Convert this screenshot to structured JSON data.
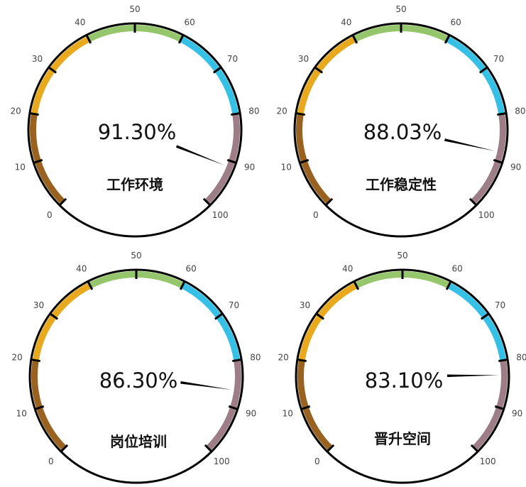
{
  "chart_data": [
    {
      "type": "gauge",
      "title": "工作环境",
      "value": 91.3,
      "value_label": "91.30%",
      "scale": {
        "min": 0,
        "max": 100,
        "tick_step": 10,
        "tick_labels": [
          "0",
          "10",
          "20",
          "30",
          "40",
          "50",
          "60",
          "70",
          "80",
          "90",
          "100"
        ]
      },
      "bands": [
        {
          "from": 0,
          "to": 20,
          "color": "#9a6220"
        },
        {
          "from": 20,
          "to": 40,
          "color": "#e9a91e"
        },
        {
          "from": 40,
          "to": 60,
          "color": "#95c66b"
        },
        {
          "from": 60,
          "to": 80,
          "color": "#36c0e6"
        },
        {
          "from": 80,
          "to": 100,
          "color": "#9d7d86"
        }
      ]
    },
    {
      "type": "gauge",
      "title": "工作稳定性",
      "value": 88.03,
      "value_label": "88.03%",
      "scale": {
        "min": 0,
        "max": 100,
        "tick_step": 10,
        "tick_labels": [
          "0",
          "10",
          "20",
          "30",
          "40",
          "50",
          "60",
          "70",
          "80",
          "90",
          "100"
        ]
      },
      "bands": [
        {
          "from": 0,
          "to": 20,
          "color": "#9a6220"
        },
        {
          "from": 20,
          "to": 40,
          "color": "#e9a91e"
        },
        {
          "from": 40,
          "to": 60,
          "color": "#95c66b"
        },
        {
          "from": 60,
          "to": 80,
          "color": "#36c0e6"
        },
        {
          "from": 80,
          "to": 100,
          "color": "#9d7d86"
        }
      ]
    },
    {
      "type": "gauge",
      "title": "岗位培训",
      "value": 86.3,
      "value_label": "86.30%",
      "scale": {
        "min": 0,
        "max": 100,
        "tick_step": 10,
        "tick_labels": [
          "0",
          "10",
          "20",
          "30",
          "40",
          "50",
          "60",
          "70",
          "80",
          "90",
          "100"
        ]
      },
      "bands": [
        {
          "from": 0,
          "to": 20,
          "color": "#9a6220"
        },
        {
          "from": 20,
          "to": 40,
          "color": "#e9a91e"
        },
        {
          "from": 40,
          "to": 60,
          "color": "#95c66b"
        },
        {
          "from": 60,
          "to": 80,
          "color": "#36c0e6"
        },
        {
          "from": 80,
          "to": 100,
          "color": "#9d7d86"
        }
      ]
    },
    {
      "type": "gauge",
      "title": "晋升空间",
      "value": 83.1,
      "value_label": "83.10%",
      "scale": {
        "min": 0,
        "max": 100,
        "tick_step": 10,
        "tick_labels": [
          "0",
          "10",
          "20",
          "30",
          "40",
          "50",
          "60",
          "70",
          "80",
          "90",
          "100"
        ]
      },
      "bands": [
        {
          "from": 0,
          "to": 20,
          "color": "#9a6220"
        },
        {
          "from": 20,
          "to": 40,
          "color": "#e9a91e"
        },
        {
          "from": 40,
          "to": 60,
          "color": "#95c66b"
        },
        {
          "from": 60,
          "to": 80,
          "color": "#36c0e6"
        },
        {
          "from": 80,
          "to": 100,
          "color": "#9d7d86"
        }
      ]
    }
  ],
  "colors": {
    "ring": "#000000",
    "needle": "#000000"
  }
}
